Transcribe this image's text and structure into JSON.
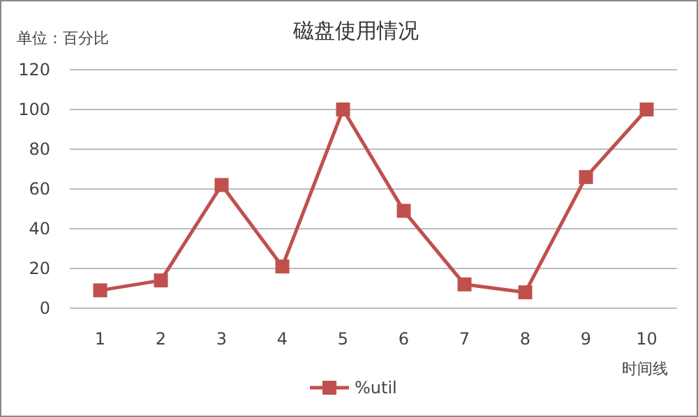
{
  "chart_data": {
    "type": "line",
    "title": "磁盘使用情况",
    "ylabel": "单位：百分比",
    "xlabel": "时间线",
    "categories": [
      "1",
      "2",
      "3",
      "4",
      "5",
      "6",
      "7",
      "8",
      "9",
      "10"
    ],
    "series": [
      {
        "name": "%util",
        "color": "#c0504d",
        "values": [
          9,
          14,
          62,
          21,
          100,
          49,
          12,
          8,
          66,
          100
        ]
      }
    ],
    "ylim": [
      0,
      120
    ],
    "yticks": [
      0,
      20,
      40,
      60,
      80,
      100,
      120
    ],
    "grid": "y",
    "legend": "bottom",
    "marker": "square",
    "line_style": "solid"
  }
}
